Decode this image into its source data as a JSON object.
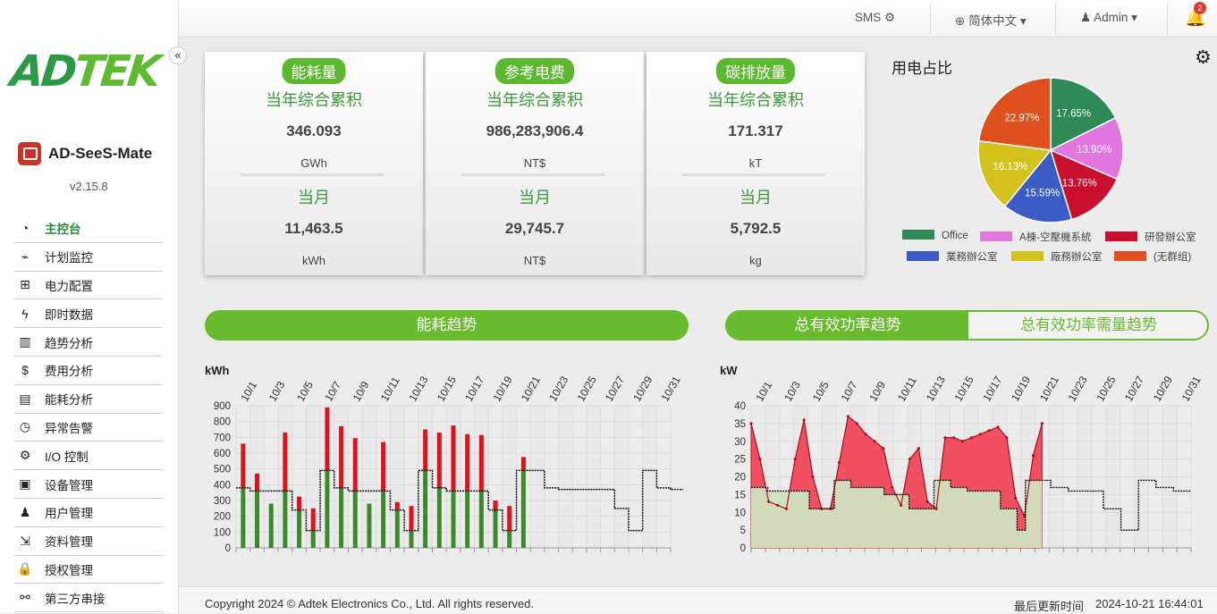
{
  "app": {
    "name": "AD-SeeS-Mate",
    "version": "v2.15.8",
    "logo_a": "ADTEK",
    "collapse_icon": "«"
  },
  "topbar": {
    "sms": "SMS",
    "language": "简体中文",
    "user": "Admin",
    "notification_count": "2"
  },
  "menu": [
    {
      "label": "主控台",
      "icon": "dashboard-icon",
      "glyph": "◔",
      "active": true
    },
    {
      "label": "计划监控",
      "icon": "monitor-icon",
      "glyph": "⌁"
    },
    {
      "label": "电力配置",
      "icon": "sitemap-icon",
      "glyph": "⊞"
    },
    {
      "label": "即时数据",
      "icon": "bolt-icon",
      "glyph": "ϟ"
    },
    {
      "label": "趋势分析",
      "icon": "bar-chart-icon",
      "glyph": "▥"
    },
    {
      "label": "费用分析",
      "icon": "dollar-icon",
      "glyph": "$"
    },
    {
      "label": "能耗分析",
      "icon": "clipboard-icon",
      "glyph": "▤"
    },
    {
      "label": "异常告警",
      "icon": "stopwatch-icon",
      "glyph": "◷"
    },
    {
      "label": "I/O 控制",
      "icon": "io-control-icon",
      "glyph": "⚙"
    },
    {
      "label": "设备管理",
      "icon": "device-icon",
      "glyph": "▣"
    },
    {
      "label": "用户管理",
      "icon": "users-icon",
      "glyph": "♟"
    },
    {
      "label": "资料管理",
      "icon": "data-export-icon",
      "glyph": "⇲"
    },
    {
      "label": "授权管理",
      "icon": "lock-icon",
      "glyph": "🔒"
    },
    {
      "label": "第三方串接",
      "icon": "link-icon",
      "glyph": "⚯"
    }
  ],
  "cards": [
    {
      "title": "能耗量",
      "year_label": "当年综合累积",
      "year_value": "346.093",
      "year_unit": "GWh",
      "month_label": "当月",
      "month_value": "11,463.5",
      "month_unit": "kWh"
    },
    {
      "title": "参考电费",
      "year_label": "当年综合累积",
      "year_value": "986,283,906.4",
      "year_unit": "NT$",
      "month_label": "当月",
      "month_value": "29,745.7",
      "month_unit": "NT$"
    },
    {
      "title": "碳排放量",
      "year_label": "当年综合累积",
      "year_value": "171.317",
      "year_unit": "kT",
      "month_label": "当月",
      "month_value": "5,792.5",
      "month_unit": "kg"
    }
  ],
  "pie": {
    "title": "用电占比",
    "slices": [
      {
        "name": "Office",
        "value": 17.65,
        "label": "17.65%",
        "color": "#2e8b57"
      },
      {
        "name": "A棟-空壓機系統",
        "value": 13.9,
        "label": "13.90%",
        "color": "#e377e0"
      },
      {
        "name": "研發辦公室",
        "value": 13.76,
        "label": "13.76%",
        "color": "#c8102e"
      },
      {
        "name": "業務辦公室",
        "value": 15.59,
        "label": "15.59%",
        "color": "#3b5cc4"
      },
      {
        "name": "廠務辦公室",
        "value": 16.13,
        "label": "16.13%",
        "color": "#d4c21c"
      },
      {
        "name": "(无群组)",
        "value": 22.97,
        "label": "22.97%",
        "color": "#e0501f"
      }
    ]
  },
  "trend_title": "能耗趋势",
  "tabs": {
    "active": "总有效功率趋势",
    "inactive": "总有效功率需量趋势"
  },
  "chart_data": [
    {
      "type": "bar",
      "ylabel": "kWh",
      "ylim": [
        0,
        900
      ],
      "yticks": [
        0,
        100,
        200,
        300,
        400,
        500,
        600,
        700,
        800,
        900
      ],
      "x_tick_labels": [
        "10/1",
        "10/3",
        "10/5",
        "10/7",
        "10/9",
        "10/11",
        "10/13",
        "10/15",
        "10/17",
        "10/19",
        "10/21",
        "10/23",
        "10/25",
        "10/27",
        "10/29",
        "10/31"
      ],
      "days": 31,
      "series": [
        {
          "values": [
            660,
            470,
            280,
            730,
            325,
            250,
            890,
            770,
            695,
            280,
            670,
            290,
            265,
            750,
            730,
            775,
            720,
            715,
            300,
            265,
            575
          ],
          "stack": "base"
        },
        {
          "values": [
            380,
            360,
            360,
            360,
            240,
            110,
            490,
            380,
            360,
            360,
            360,
            240,
            110,
            490,
            380,
            360,
            360,
            360,
            240,
            110,
            490
          ],
          "type": "step-line"
        }
      ],
      "base_values": [
        380,
        360,
        280,
        360,
        240,
        110,
        490,
        380,
        360,
        280,
        360,
        240,
        110,
        490,
        380,
        360,
        360,
        360,
        240,
        110,
        490
      ],
      "baseline_future": [
        490,
        380,
        370,
        370,
        370,
        370,
        250,
        110,
        490,
        380,
        370
      ],
      "grid": true
    },
    {
      "type": "area",
      "ylabel": "kW",
      "ylim": [
        0,
        40
      ],
      "yticks": [
        0,
        5,
        10,
        15,
        20,
        25,
        30,
        35,
        40
      ],
      "x_tick_labels": [
        "10/1",
        "10/3",
        "10/5",
        "10/7",
        "10/9",
        "10/11",
        "10/13",
        "10/15",
        "10/17",
        "10/19",
        "10/21",
        "10/23",
        "10/25",
        "10/27",
        "10/29",
        "10/31"
      ],
      "days": 31,
      "series": [
        {
          "values": [
            35,
            25,
            13,
            12,
            11,
            25,
            36,
            20,
            11,
            11,
            24,
            37,
            35,
            32,
            30,
            28,
            17,
            12,
            25,
            28,
            13,
            11,
            31,
            31,
            30,
            31,
            32,
            33,
            34,
            31,
            14,
            9,
            26,
            35
          ]
        },
        {
          "values": [
            17,
            17,
            16,
            16,
            16,
            16,
            16,
            11,
            11,
            11,
            19,
            19,
            17,
            17,
            17,
            17,
            15,
            15,
            15,
            11,
            11,
            11,
            19,
            19,
            17,
            17,
            16,
            16,
            16,
            16,
            11,
            11,
            5,
            19,
            19
          ]
        }
      ],
      "baseline_future": [
        19,
        17,
        17,
        16,
        16,
        16,
        16,
        11,
        11,
        5,
        5,
        19,
        19,
        17,
        17,
        16,
        16
      ],
      "grid": true
    }
  ],
  "footer": {
    "copyright": "Copyright 2024 © Adtek Electronics Co., Ltd. All rights reserved.",
    "updated_label": "最后更新时间",
    "updated_time": "2024-10-21 16:44:01"
  }
}
